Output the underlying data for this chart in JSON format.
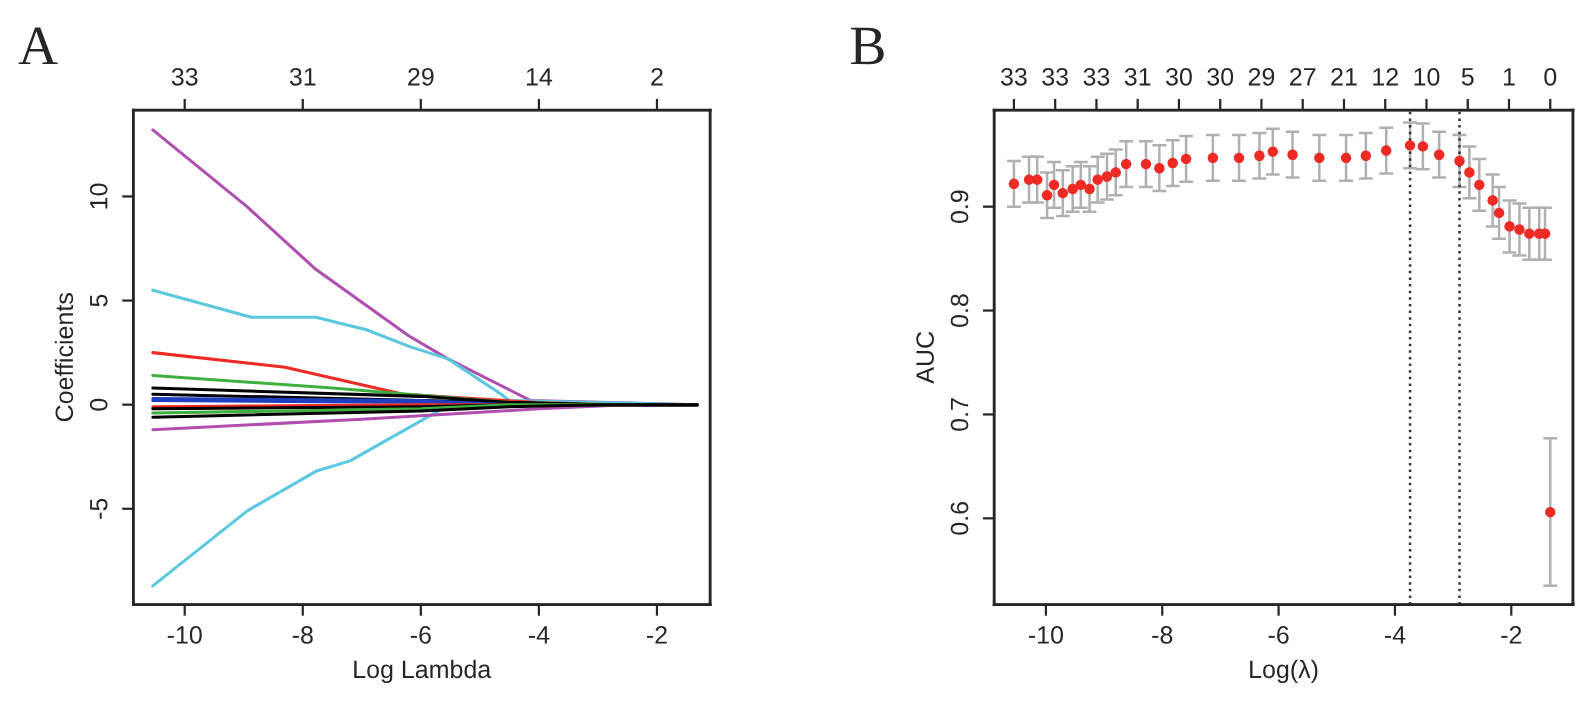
{
  "chart_data": [
    {
      "type": "line",
      "title": "A",
      "xlabel": "Log Lambda",
      "ylabel": "Coefficients",
      "xlim": [
        -10.87,
        -1.1
      ],
      "ylim": [
        -9.6,
        14.15
      ],
      "xticks": [
        -10,
        -8,
        -6,
        -4,
        -2
      ],
      "yticks": [
        -5,
        0,
        5,
        10
      ],
      "grid": false,
      "legend": false,
      "annotations": [
        "33",
        "31",
        "29",
        "14",
        "2"
      ],
      "series": [
        {
          "color": "#b04fb0",
          "x": [
            -10.54,
            -8.94,
            -7.78,
            -6.2,
            -5.54,
            -4.14,
            -1.32
          ],
          "values": [
            13.2,
            9.5,
            6.5,
            3.3,
            2.2,
            0.2,
            0
          ]
        },
        {
          "color": "#5bc8e0",
          "x": [
            -10.54,
            -8.87,
            -7.78,
            -6.92,
            -6.2,
            -5.54,
            -4.64,
            -4.5,
            -1.32
          ],
          "values": [
            5.5,
            4.2,
            4.2,
            3.6,
            2.8,
            2.2,
            0.5,
            0.2,
            0
          ]
        },
        {
          "color": "#5bc8e0",
          "x": [
            -10.54,
            -8.94,
            -7.78,
            -7.2,
            -5.7,
            -5.5,
            -1.32
          ],
          "values": [
            -8.7,
            -5.1,
            -3.2,
            -2.7,
            -0.3,
            0,
            0
          ]
        },
        {
          "color": "#ee2a24",
          "x": [
            -10.54,
            -8.3,
            -6.3,
            -4.0,
            -2.8,
            -1.32
          ],
          "values": [
            2.5,
            1.8,
            0.5,
            0.1,
            0,
            0
          ]
        },
        {
          "color": "#3fb03f",
          "x": [
            -10.54,
            -7.5,
            -4.5,
            -2.6,
            -1.32
          ],
          "values": [
            1.4,
            0.8,
            0.1,
            0,
            0
          ]
        },
        {
          "color": "#b04fb0",
          "x": [
            -10.54,
            -7.0,
            -4.0,
            -2.5,
            -1.32
          ],
          "values": [
            -1.2,
            -0.7,
            -0.2,
            0,
            0
          ]
        },
        {
          "color": "#000000",
          "x": [
            -10.54,
            -6.0,
            -4.5,
            -3.0,
            -1.32
          ],
          "values": [
            0.8,
            0.4,
            0.1,
            0,
            0
          ]
        },
        {
          "color": "#000000",
          "x": [
            -10.54,
            -6.0,
            -4.5,
            -3.0,
            -1.32
          ],
          "values": [
            0.5,
            0.2,
            0.1,
            0,
            0
          ]
        },
        {
          "color": "#2040c0",
          "x": [
            -10.54,
            -6.0,
            -4.5,
            -3.0,
            -1.32
          ],
          "values": [
            0.3,
            0.2,
            0,
            0,
            0
          ]
        },
        {
          "color": "#2040c0",
          "x": [
            -10.54,
            -6.0,
            -4.5,
            -3.0,
            -1.32
          ],
          "values": [
            0.2,
            0.1,
            0,
            0,
            0
          ]
        },
        {
          "color": "#ee2a24",
          "x": [
            -10.54,
            -6.0,
            -4.5,
            -3.0,
            -1.32
          ],
          "values": [
            -0.1,
            0,
            0,
            0,
            0
          ]
        },
        {
          "color": "#000000",
          "x": [
            -10.54,
            -6.0,
            -4.5,
            -3.0,
            -1.32
          ],
          "values": [
            -0.2,
            -0.1,
            0,
            0,
            0
          ]
        },
        {
          "color": "#3fb03f",
          "x": [
            -10.54,
            -6.0,
            -4.5,
            -3.0,
            -1.32
          ],
          "values": [
            -0.4,
            -0.2,
            0,
            0,
            0
          ]
        },
        {
          "color": "#000000",
          "x": [
            -10.54,
            -6.0,
            -4.5,
            -3.0,
            -1.32
          ],
          "values": [
            -0.6,
            -0.3,
            -0.1,
            0,
            0
          ]
        }
      ]
    },
    {
      "type": "scatter",
      "title": "B",
      "xlabel": "Log(λ)",
      "ylabel": "AUC",
      "xlim": [
        -10.89,
        -0.94
      ],
      "ylim": [
        0.517,
        0.993
      ],
      "xticks": [
        -10,
        -8,
        -6,
        -4,
        -2
      ],
      "yticks": [
        0.6,
        0.7,
        0.8,
        0.9
      ],
      "grid": false,
      "legend": false,
      "marker": "circle",
      "annotations": [
        "33",
        "33",
        "33",
        "31",
        "30",
        "30",
        "29",
        "27",
        "21",
        "12",
        "10",
        "5",
        "1",
        "0"
      ],
      "ref_lines": [
        {
          "axis": "x",
          "value": -3.74,
          "color": "#333333",
          "line_style": "dotted"
        },
        {
          "axis": "x",
          "value": -2.89,
          "color": "#333333",
          "line_style": "dotted"
        }
      ],
      "series": [
        {
          "color": "#ee2a24",
          "x": [
            -10.55,
            -10.29,
            -10.15,
            -9.98,
            -9.86,
            -9.71,
            -9.54,
            -9.4,
            -9.25,
            -9.11,
            -8.95,
            -8.8,
            -8.62,
            -8.28,
            -8.05,
            -7.82,
            -7.59,
            -7.13,
            -6.68,
            -6.33,
            -6.1,
            -5.76,
            -5.3,
            -4.84,
            -4.5,
            -4.15,
            -3.74,
            -3.52,
            -3.24,
            -2.89,
            -2.72,
            -2.55,
            -2.32,
            -2.21,
            -2.03,
            -1.86,
            -1.69,
            -1.52,
            -1.42,
            -1.33
          ],
          "values": [
            0.922,
            0.926,
            0.926,
            0.911,
            0.921,
            0.913,
            0.917,
            0.921,
            0.917,
            0.926,
            0.929,
            0.933,
            0.941,
            0.941,
            0.937,
            0.942,
            0.946,
            0.947,
            0.947,
            0.949,
            0.953,
            0.95,
            0.947,
            0.947,
            0.949,
            0.954,
            0.959,
            0.958,
            0.95,
            0.944,
            0.933,
            0.921,
            0.906,
            0.894,
            0.881,
            0.878,
            0.874,
            0.874,
            0.874,
            0.606
          ],
          "errors": [
            0.022,
            0.022,
            0.022,
            0.022,
            0.022,
            0.022,
            0.022,
            0.022,
            0.022,
            0.022,
            0.022,
            0.022,
            0.022,
            0.022,
            0.022,
            0.022,
            0.022,
            0.022,
            0.022,
            0.022,
            0.022,
            0.022,
            0.022,
            0.022,
            0.022,
            0.022,
            0.022,
            0.022,
            0.022,
            0.025,
            0.025,
            0.025,
            0.025,
            0.025,
            0.025,
            0.025,
            0.025,
            0.025,
            0.025,
            0.071
          ]
        }
      ]
    }
  ]
}
